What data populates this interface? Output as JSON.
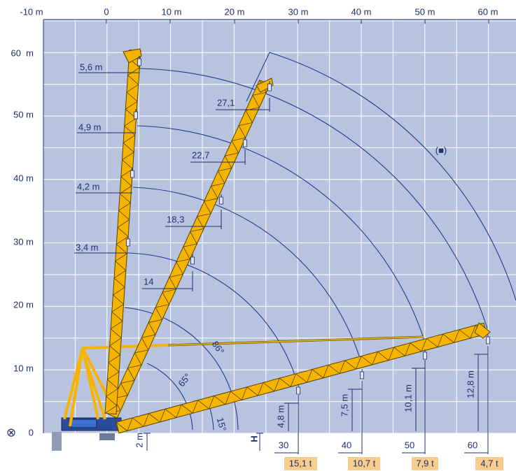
{
  "axes": {
    "x_labels": [
      "-10 m",
      "0",
      "10 m",
      "20 m",
      "30 m",
      "40 m",
      "50 m",
      "60 m"
    ],
    "y_labels": [
      "60  m",
      "50 m",
      "40 m",
      "30 m",
      "20 m",
      "10 m",
      "0"
    ]
  },
  "origin_symbol": "⊗",
  "boom_radii": [
    "5,6 m",
    "4,9 m",
    "4,2 m",
    "3,4 m"
  ],
  "luffing_radii": [
    "27,1",
    "22,7",
    "18,3",
    "14"
  ],
  "angles": [
    "86°",
    "65°",
    "15°"
  ],
  "hook_heights": [
    "4,8 m",
    "7,5 m",
    "10,1 m",
    "12,8 m"
  ],
  "radii": [
    "30",
    "40",
    "50",
    "60"
  ],
  "loads": [
    "15,1 t",
    "10,7 t",
    "7,9 t",
    "4,7 t"
  ],
  "base_offset": "2 m",
  "height_symbol": "H",
  "note": "(■)"
}
